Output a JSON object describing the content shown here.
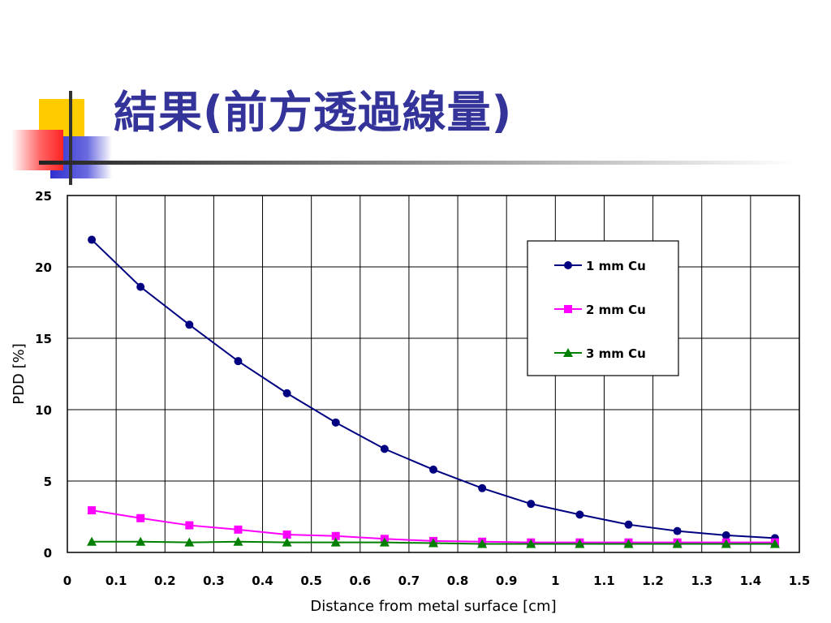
{
  "slide": {
    "title": "結果(前方透過線量)",
    "title_color": "#33339a",
    "decor_colors": {
      "yellow": "#ffcc00",
      "red": "#ff3333",
      "blue": "#3333cc",
      "bar": "#333333"
    }
  },
  "chart_data": {
    "type": "line",
    "title": "",
    "xlabel": "Distance from metal surface [cm]",
    "ylabel": "PDD [%]",
    "xlim": [
      0,
      1.5
    ],
    "ylim": [
      0,
      25
    ],
    "x_ticks": [
      "0",
      "0.1",
      "0.2",
      "0.3",
      "0.4",
      "0.5",
      "0.6",
      "0.7",
      "0.8",
      "0.9",
      "1",
      "1.1",
      "1.2",
      "1.3",
      "1.4",
      "1.5"
    ],
    "x_tick_values": [
      0,
      0.1,
      0.2,
      0.3,
      0.4,
      0.5,
      0.6,
      0.7,
      0.8,
      0.9,
      1.0,
      1.1,
      1.2,
      1.3,
      1.4,
      1.5
    ],
    "y_ticks": [
      "0",
      "5",
      "10",
      "15",
      "20",
      "25"
    ],
    "y_tick_values": [
      0,
      5,
      10,
      15,
      20,
      25
    ],
    "grid": true,
    "legend_position": "top-right",
    "x": [
      0.05,
      0.15,
      0.25,
      0.35,
      0.45,
      0.55,
      0.65,
      0.75,
      0.85,
      0.95,
      1.05,
      1.15,
      1.25,
      1.35,
      1.45
    ],
    "series": [
      {
        "name": "1 mm Cu",
        "color": "#000080",
        "marker": "circle",
        "values": [
          21.9,
          18.6,
          15.95,
          13.4,
          11.15,
          9.1,
          7.25,
          5.8,
          4.5,
          3.4,
          2.65,
          1.95,
          1.5,
          1.2,
          1.0
        ]
      },
      {
        "name": "2 mm Cu",
        "color": "#ff00ff",
        "marker": "square",
        "values": [
          2.95,
          2.4,
          1.9,
          1.6,
          1.25,
          1.15,
          0.95,
          0.8,
          0.75,
          0.7,
          0.7,
          0.7,
          0.7,
          0.7,
          0.7
        ]
      },
      {
        "name": "3 mm Cu",
        "color": "#008000",
        "marker": "triangle",
        "values": [
          0.75,
          0.75,
          0.7,
          0.75,
          0.7,
          0.7,
          0.7,
          0.65,
          0.6,
          0.6,
          0.6,
          0.6,
          0.6,
          0.6,
          0.6
        ]
      }
    ]
  }
}
